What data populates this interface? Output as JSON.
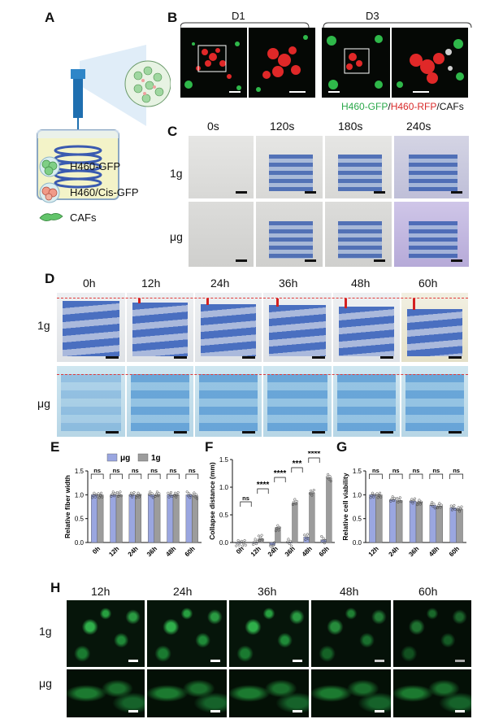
{
  "panels": {
    "A": "A",
    "B": "B",
    "C": "C",
    "D": "D",
    "E": "E",
    "F": "F",
    "G": "G",
    "H": "H"
  },
  "panel_a": {
    "legend": [
      {
        "label": "H460-GFP",
        "icon": "green-cell-cluster-icon"
      },
      {
        "label": "H460/Cis-GFP",
        "icon": "red-cell-cluster-icon"
      },
      {
        "label": "CAFs",
        "icon": "fibroblast-cell-icon"
      }
    ]
  },
  "panel_b": {
    "days": [
      "D1",
      "D3"
    ],
    "legend_parts": [
      {
        "text": "H460-GFP",
        "color": "#2aa84a"
      },
      {
        "text": "/",
        "color": "#111111"
      },
      {
        "text": "H460-RFP",
        "color": "#d82a2a"
      },
      {
        "text": "/CAFs",
        "color": "#111111"
      }
    ]
  },
  "panel_c": {
    "times": [
      "0s",
      "120s",
      "180s",
      "240s"
    ],
    "rows": [
      "1g",
      "μg"
    ]
  },
  "panel_d": {
    "times": [
      "0h",
      "12h",
      "24h",
      "36h",
      "48h",
      "60h"
    ],
    "rows": [
      "1g",
      "μg"
    ]
  },
  "panel_h": {
    "times": [
      "12h",
      "24h",
      "36h",
      "48h",
      "60h"
    ],
    "rows": [
      "1g",
      "μg"
    ]
  },
  "colors": {
    "ug": "#9aa6e0",
    "g1": "#9c9c9c"
  },
  "chart_data": [
    {
      "type": "bar",
      "panel": "E",
      "ylabel": "Relative fiber width",
      "ylim": [
        0,
        1.5
      ],
      "yticks": [
        "0.0",
        "0.5",
        "1.0",
        "1.5"
      ],
      "categories": [
        "0h",
        "12h",
        "24h",
        "36h",
        "48h",
        "60h"
      ],
      "legend": [
        "μg",
        "1g"
      ],
      "series": [
        {
          "name": "μg",
          "values": [
            1.0,
            1.0,
            1.0,
            1.0,
            1.0,
            1.0
          ]
        },
        {
          "name": "1g",
          "values": [
            1.0,
            1.0,
            1.0,
            1.0,
            1.0,
            0.98
          ]
        }
      ],
      "annotations": [
        "ns",
        "ns",
        "ns",
        "ns",
        "ns",
        "ns"
      ]
    },
    {
      "type": "bar",
      "panel": "F",
      "ylabel": "Collapse distance (mm)",
      "ylim": [
        0,
        1.5
      ],
      "yticks": [
        "0.0",
        "0.5",
        "1.0",
        "1.5"
      ],
      "categories": [
        "0h",
        "12h",
        "24h",
        "36h",
        "48h",
        "60h"
      ],
      "series": [
        {
          "name": "μg",
          "values": [
            0.0,
            0.0,
            -0.05,
            0.0,
            0.1,
            0.05
          ]
        },
        {
          "name": "1g",
          "values": [
            0.0,
            0.07,
            0.27,
            0.72,
            0.9,
            1.17
          ]
        }
      ],
      "annotations": [
        "ns",
        "****",
        "****",
        "***",
        "****"
      ]
    },
    {
      "type": "bar",
      "panel": "G",
      "ylabel": "Relative cell viability",
      "ylim": [
        0,
        1.5
      ],
      "yticks": [
        "0.0",
        "0.5",
        "1.0",
        "1.5"
      ],
      "categories": [
        "12h",
        "24h",
        "36h",
        "48h",
        "60h"
      ],
      "series": [
        {
          "name": "μg",
          "values": [
            1.0,
            0.9,
            0.87,
            0.78,
            0.73
          ]
        },
        {
          "name": "1g",
          "values": [
            1.0,
            0.88,
            0.85,
            0.76,
            0.7
          ]
        }
      ],
      "annotations": [
        "ns",
        "ns",
        "ns",
        "ns",
        "ns"
      ]
    }
  ]
}
